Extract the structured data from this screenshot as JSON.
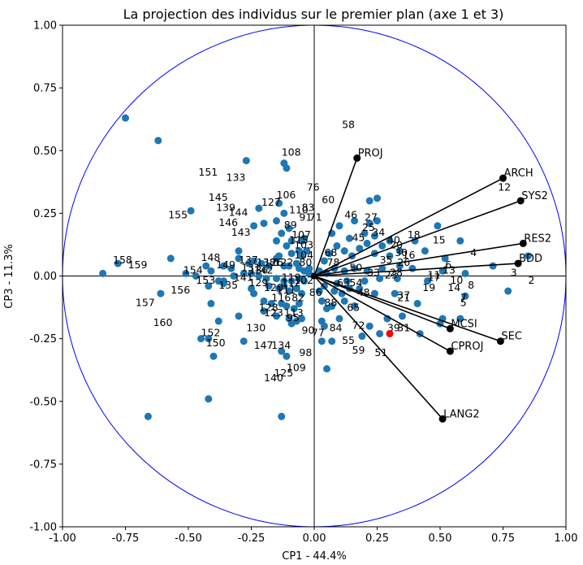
{
  "chart_data": {
    "type": "scatter",
    "title": "La projection des individus sur le premier plan (axe 1 et 3)",
    "xlabel": "CP1 - 44.4%",
    "ylabel": "CP3 - 11.3%",
    "xlim": [
      -1.0,
      1.0
    ],
    "ylim": [
      -1.0,
      1.0
    ],
    "xticks": [
      "-1.00",
      "-0.75",
      "-0.50",
      "-0.25",
      "0.00",
      "0.25",
      "0.50",
      "0.75",
      "1.00"
    ],
    "yticks": [
      "-1.00",
      "-0.75",
      "-0.50",
      "-0.25",
      "0.00",
      "0.25",
      "0.50",
      "0.75",
      "1.00"
    ],
    "grid": false,
    "unit_circle": {
      "radius": 1.0,
      "color": "#0000ff"
    },
    "point_color": "#1f77b4",
    "variable_color": "#000000",
    "highlight_color": "#ff0000",
    "highlight_point": {
      "x": 0.3,
      "y": -0.23
    },
    "variables": [
      {
        "name": "PROJ",
        "x": 0.17,
        "y": 0.47
      },
      {
        "name": "ARCH",
        "x": 0.75,
        "y": 0.39
      },
      {
        "name": "SYS2",
        "x": 0.82,
        "y": 0.3
      },
      {
        "name": "RES2",
        "x": 0.83,
        "y": 0.13
      },
      {
        "name": "BDD",
        "x": 0.81,
        "y": 0.05
      },
      {
        "name": "MCSI",
        "x": 0.54,
        "y": -0.21
      },
      {
        "name": "SEC",
        "x": 0.74,
        "y": -0.26
      },
      {
        "name": "CPROJ",
        "x": 0.54,
        "y": -0.3
      },
      {
        "name": "LANG2",
        "x": 0.51,
        "y": -0.57
      }
    ],
    "points": [
      {
        "x": -0.75,
        "y": 0.63
      },
      {
        "x": -0.62,
        "y": 0.54
      },
      {
        "x": -0.27,
        "y": 0.46
      },
      {
        "x": -0.12,
        "y": 0.45
      },
      {
        "x": -0.11,
        "y": 0.43
      },
      {
        "x": -0.49,
        "y": 0.26
      },
      {
        "x": -0.22,
        "y": 0.27
      },
      {
        "x": -0.14,
        "y": 0.29
      },
      {
        "x": -0.12,
        "y": 0.25
      },
      {
        "x": -0.2,
        "y": 0.21
      },
      {
        "x": -0.24,
        "y": 0.2
      },
      {
        "x": -0.15,
        "y": 0.22
      },
      {
        "x": -0.1,
        "y": 0.19
      },
      {
        "x": -0.13,
        "y": 0.17
      },
      {
        "x": -0.15,
        "y": 0.14
      },
      {
        "x": -0.11,
        "y": 0.12
      },
      {
        "x": -0.09,
        "y": 0.14
      },
      {
        "x": -0.05,
        "y": 0.14
      },
      {
        "x": -0.04,
        "y": 0.15
      },
      {
        "x": -0.06,
        "y": 0.1
      },
      {
        "x": -0.09,
        "y": 0.09
      },
      {
        "x": -0.14,
        "y": 0.08
      },
      {
        "x": -0.05,
        "y": 0.08
      },
      {
        "x": -0.03,
        "y": 0.1
      },
      {
        "x": -0.57,
        "y": 0.07
      },
      {
        "x": -0.43,
        "y": 0.04
      },
      {
        "x": -0.41,
        "y": 0.02
      },
      {
        "x": -0.36,
        "y": 0.04
      },
      {
        "x": -0.33,
        "y": 0.03
      },
      {
        "x": -0.3,
        "y": 0.07
      },
      {
        "x": -0.3,
        "y": 0.1
      },
      {
        "x": -0.26,
        "y": 0.05
      },
      {
        "x": -0.24,
        "y": 0.06
      },
      {
        "x": -0.21,
        "y": 0.05
      },
      {
        "x": -0.18,
        "y": 0.04
      },
      {
        "x": -0.15,
        "y": 0.07
      },
      {
        "x": -0.12,
        "y": 0.04
      },
      {
        "x": -0.1,
        "y": 0.04
      },
      {
        "x": -0.07,
        "y": 0.05
      },
      {
        "x": -0.06,
        "y": 0.03
      },
      {
        "x": -0.04,
        "y": 0.02
      },
      {
        "x": -0.02,
        "y": 0.03
      },
      {
        "x": -0.02,
        "y": 0.01
      },
      {
        "x": -0.78,
        "y": 0.05
      },
      {
        "x": -0.84,
        "y": 0.01
      },
      {
        "x": -0.51,
        "y": 0.01
      },
      {
        "x": -0.47,
        "y": 0.0
      },
      {
        "x": -0.38,
        "y": -0.02
      },
      {
        "x": -0.36,
        "y": -0.02
      },
      {
        "x": -0.32,
        "y": 0.0
      },
      {
        "x": -0.28,
        "y": 0.01
      },
      {
        "x": -0.25,
        "y": 0.01
      },
      {
        "x": -0.22,
        "y": 0.0
      },
      {
        "x": -0.19,
        "y": -0.01
      },
      {
        "x": -0.15,
        "y": -0.01
      },
      {
        "x": -0.12,
        "y": -0.02
      },
      {
        "x": -0.09,
        "y": -0.02
      },
      {
        "x": -0.06,
        "y": -0.01
      },
      {
        "x": -0.04,
        "y": -0.02
      },
      {
        "x": -0.61,
        "y": -0.07
      },
      {
        "x": -0.42,
        "y": -0.04
      },
      {
        "x": -0.36,
        "y": -0.03
      },
      {
        "x": -0.25,
        "y": -0.05
      },
      {
        "x": -0.24,
        "y": -0.07
      },
      {
        "x": -0.18,
        "y": -0.04
      },
      {
        "x": -0.14,
        "y": -0.05
      },
      {
        "x": -0.12,
        "y": -0.04
      },
      {
        "x": -0.1,
        "y": -0.06
      },
      {
        "x": -0.07,
        "y": -0.05
      },
      {
        "x": -0.05,
        "y": -0.07
      },
      {
        "x": -0.41,
        "y": -0.11
      },
      {
        "x": -0.2,
        "y": -0.1
      },
      {
        "x": -0.17,
        "y": -0.11
      },
      {
        "x": -0.13,
        "y": -0.11
      },
      {
        "x": -0.11,
        "y": -0.12
      },
      {
        "x": -0.08,
        "y": -0.13
      },
      {
        "x": -0.06,
        "y": -0.11
      },
      {
        "x": -0.38,
        "y": -0.18
      },
      {
        "x": -0.3,
        "y": -0.16
      },
      {
        "x": -0.2,
        "y": -0.14
      },
      {
        "x": -0.15,
        "y": -0.16
      },
      {
        "x": -0.1,
        "y": -0.17
      },
      {
        "x": -0.07,
        "y": -0.18
      },
      {
        "x": -0.05,
        "y": -0.17
      },
      {
        "x": -0.09,
        "y": -0.19
      },
      {
        "x": -0.45,
        "y": -0.25
      },
      {
        "x": -0.42,
        "y": -0.25
      },
      {
        "x": -0.4,
        "y": -0.32
      },
      {
        "x": -0.28,
        "y": -0.26
      },
      {
        "x": -0.13,
        "y": -0.3
      },
      {
        "x": -0.11,
        "y": -0.32
      },
      {
        "x": -0.42,
        "y": -0.49
      },
      {
        "x": -0.66,
        "y": -0.56
      },
      {
        "x": -0.13,
        "y": -0.56
      },
      {
        "x": 0.05,
        "y": -0.37
      },
      {
        "x": 0.03,
        "y": -0.26
      },
      {
        "x": 0.07,
        "y": -0.26
      },
      {
        "x": 0.1,
        "y": -0.17
      },
      {
        "x": 0.04,
        "y": -0.2
      },
      {
        "x": 0.03,
        "y": -0.18
      },
      {
        "x": 0.19,
        "y": -0.24
      },
      {
        "x": 0.22,
        "y": -0.2
      },
      {
        "x": 0.26,
        "y": -0.23
      },
      {
        "x": 0.29,
        "y": -0.17
      },
      {
        "x": 0.35,
        "y": -0.16
      },
      {
        "x": 0.42,
        "y": -0.23
      },
      {
        "x": 0.5,
        "y": -0.19
      },
      {
        "x": 0.51,
        "y": -0.17
      },
      {
        "x": 0.58,
        "y": -0.17
      },
      {
        "x": 0.16,
        "y": -0.12
      },
      {
        "x": 0.12,
        "y": -0.1
      },
      {
        "x": 0.07,
        "y": -0.12
      },
      {
        "x": 0.05,
        "y": -0.13
      },
      {
        "x": 0.03,
        "y": -0.1
      },
      {
        "x": 0.08,
        "y": -0.06
      },
      {
        "x": 0.11,
        "y": -0.07
      },
      {
        "x": 0.14,
        "y": -0.05
      },
      {
        "x": 0.18,
        "y": -0.05
      },
      {
        "x": 0.24,
        "y": -0.07
      },
      {
        "x": 0.32,
        "y": -0.07
      },
      {
        "x": 0.41,
        "y": -0.11
      },
      {
        "x": 0.6,
        "y": -0.08
      },
      {
        "x": 0.77,
        "y": -0.06
      },
      {
        "x": 0.04,
        "y": -0.04
      },
      {
        "x": 0.02,
        "y": -0.06
      },
      {
        "x": 0.09,
        "y": -0.03
      },
      {
        "x": 0.13,
        "y": -0.02
      },
      {
        "x": 0.2,
        "y": -0.02
      },
      {
        "x": 0.26,
        "y": -0.01
      },
      {
        "x": 0.33,
        "y": -0.01
      },
      {
        "x": 0.45,
        "y": -0.02
      },
      {
        "x": 0.02,
        "y": 0.02
      },
      {
        "x": 0.05,
        "y": 0.01
      },
      {
        "x": 0.08,
        "y": 0.03
      },
      {
        "x": 0.12,
        "y": 0.02
      },
      {
        "x": 0.16,
        "y": 0.03
      },
      {
        "x": 0.21,
        "y": 0.02
      },
      {
        "x": 0.27,
        "y": 0.03
      },
      {
        "x": 0.34,
        "y": 0.04
      },
      {
        "x": 0.39,
        "y": 0.03
      },
      {
        "x": 0.51,
        "y": 0.02
      },
      {
        "x": 0.52,
        "y": 0.07
      },
      {
        "x": 0.6,
        "y": 0.01
      },
      {
        "x": 0.71,
        "y": 0.04
      },
      {
        "x": 0.85,
        "y": 0.08
      },
      {
        "x": 0.04,
        "y": 0.06
      },
      {
        "x": 0.06,
        "y": 0.09
      },
      {
        "x": 0.09,
        "y": 0.12
      },
      {
        "x": 0.12,
        "y": 0.1
      },
      {
        "x": 0.15,
        "y": 0.08
      },
      {
        "x": 0.18,
        "y": 0.11
      },
      {
        "x": 0.21,
        "y": 0.13
      },
      {
        "x": 0.24,
        "y": 0.09
      },
      {
        "x": 0.27,
        "y": 0.12
      },
      {
        "x": 0.3,
        "y": 0.08
      },
      {
        "x": 0.34,
        "y": 0.1
      },
      {
        "x": 0.44,
        "y": 0.1
      },
      {
        "x": 0.07,
        "y": 0.17
      },
      {
        "x": 0.1,
        "y": 0.2
      },
      {
        "x": 0.14,
        "y": 0.15
      },
      {
        "x": 0.16,
        "y": 0.22
      },
      {
        "x": 0.2,
        "y": 0.17
      },
      {
        "x": 0.22,
        "y": 0.21
      },
      {
        "x": 0.24,
        "y": 0.16
      },
      {
        "x": 0.25,
        "y": 0.22
      },
      {
        "x": 0.3,
        "y": 0.14
      },
      {
        "x": 0.4,
        "y": 0.14
      },
      {
        "x": 0.49,
        "y": 0.2
      },
      {
        "x": 0.58,
        "y": 0.14
      },
      {
        "x": 0.22,
        "y": 0.3
      },
      {
        "x": 0.25,
        "y": 0.31
      }
    ],
    "point_labels": [
      {
        "text": "58",
        "x": 0.11,
        "y": 0.59
      },
      {
        "text": "108",
        "x": -0.13,
        "y": 0.48
      },
      {
        "text": "151",
        "x": -0.46,
        "y": 0.4
      },
      {
        "text": "133",
        "x": -0.35,
        "y": 0.38
      },
      {
        "text": "76",
        "x": -0.03,
        "y": 0.34
      },
      {
        "text": "145",
        "x": -0.42,
        "y": 0.3
      },
      {
        "text": "106",
        "x": -0.15,
        "y": 0.31
      },
      {
        "text": "60",
        "x": 0.03,
        "y": 0.29
      },
      {
        "text": "127",
        "x": -0.21,
        "y": 0.28
      },
      {
        "text": "139",
        "x": -0.39,
        "y": 0.26
      },
      {
        "text": "110",
        "x": -0.1,
        "y": 0.25
      },
      {
        "text": "83",
        "x": -0.05,
        "y": 0.26
      },
      {
        "text": "155",
        "x": -0.58,
        "y": 0.23
      },
      {
        "text": "144",
        "x": -0.34,
        "y": 0.24
      },
      {
        "text": "91",
        "x": -0.06,
        "y": 0.22
      },
      {
        "text": "71",
        "x": -0.02,
        "y": 0.22
      },
      {
        "text": "46",
        "x": 0.12,
        "y": 0.23
      },
      {
        "text": "27",
        "x": 0.2,
        "y": 0.22
      },
      {
        "text": "146",
        "x": -0.38,
        "y": 0.2
      },
      {
        "text": "89",
        "x": -0.12,
        "y": 0.19
      },
      {
        "text": "143",
        "x": -0.33,
        "y": 0.16
      },
      {
        "text": "107",
        "x": -0.09,
        "y": 0.15
      },
      {
        "text": "115",
        "x": -0.1,
        "y": 0.13
      },
      {
        "text": "103",
        "x": -0.08,
        "y": 0.11
      },
      {
        "text": "18",
        "x": 0.37,
        "y": 0.15
      },
      {
        "text": "15",
        "x": 0.47,
        "y": 0.13
      },
      {
        "text": "4",
        "x": 0.62,
        "y": 0.08
      },
      {
        "text": "12",
        "x": 0.73,
        "y": 0.34
      },
      {
        "text": "158",
        "x": -0.8,
        "y": 0.05
      },
      {
        "text": "159",
        "x": -0.74,
        "y": 0.03
      },
      {
        "text": "148",
        "x": -0.45,
        "y": 0.06
      },
      {
        "text": "137",
        "x": -0.3,
        "y": 0.05
      },
      {
        "text": "122",
        "x": -0.16,
        "y": 0.04
      },
      {
        "text": "104",
        "x": -0.08,
        "y": 0.07
      },
      {
        "text": "154",
        "x": -0.52,
        "y": 0.01
      },
      {
        "text": "149",
        "x": -0.39,
        "y": 0.03
      },
      {
        "text": "153",
        "x": -0.47,
        "y": -0.03
      },
      {
        "text": "141",
        "x": -0.32,
        "y": -0.02
      },
      {
        "text": "135",
        "x": -0.38,
        "y": -0.05
      },
      {
        "text": "129",
        "x": -0.26,
        "y": -0.04
      },
      {
        "text": "120",
        "x": -0.2,
        "y": -0.06
      },
      {
        "text": "156",
        "x": -0.57,
        "y": -0.07
      },
      {
        "text": "157",
        "x": -0.71,
        "y": -0.12
      },
      {
        "text": "116",
        "x": -0.17,
        "y": -0.1
      },
      {
        "text": "128",
        "x": -0.22,
        "y": -0.14
      },
      {
        "text": "123",
        "x": -0.2,
        "y": -0.16
      },
      {
        "text": "113",
        "x": -0.12,
        "y": -0.16
      },
      {
        "text": "160",
        "x": -0.64,
        "y": -0.2
      },
      {
        "text": "130",
        "x": -0.27,
        "y": -0.22
      },
      {
        "text": "152",
        "x": -0.45,
        "y": -0.24
      },
      {
        "text": "150",
        "x": -0.43,
        "y": -0.28
      },
      {
        "text": "147",
        "x": -0.24,
        "y": -0.29
      },
      {
        "text": "134",
        "x": -0.17,
        "y": -0.29
      },
      {
        "text": "98",
        "x": -0.06,
        "y": -0.32
      },
      {
        "text": "109",
        "x": -0.11,
        "y": -0.38
      },
      {
        "text": "125",
        "x": -0.16,
        "y": -0.4
      },
      {
        "text": "140",
        "x": -0.2,
        "y": -0.42
      },
      {
        "text": "90",
        "x": -0.05,
        "y": -0.23
      },
      {
        "text": "77",
        "x": -0.01,
        "y": -0.24
      },
      {
        "text": "84",
        "x": 0.06,
        "y": -0.22
      },
      {
        "text": "55",
        "x": 0.11,
        "y": -0.27
      },
      {
        "text": "59",
        "x": 0.15,
        "y": -0.31
      },
      {
        "text": "51",
        "x": 0.24,
        "y": -0.32
      },
      {
        "text": "72",
        "x": 0.15,
        "y": -0.21
      },
      {
        "text": "39",
        "x": 0.29,
        "y": -0.22
      },
      {
        "text": "31",
        "x": 0.33,
        "y": -0.22
      },
      {
        "text": "65",
        "x": 0.13,
        "y": -0.14
      },
      {
        "text": "37",
        "x": 0.33,
        "y": -0.09
      },
      {
        "text": "21",
        "x": 0.33,
        "y": -0.1
      },
      {
        "text": "19",
        "x": 0.43,
        "y": -0.06
      },
      {
        "text": "14",
        "x": 0.53,
        "y": -0.06
      },
      {
        "text": "7",
        "x": 0.58,
        "y": -0.1
      },
      {
        "text": "5",
        "x": 0.58,
        "y": -0.12
      },
      {
        "text": "8",
        "x": 0.61,
        "y": -0.05
      },
      {
        "text": "10",
        "x": 0.54,
        "y": -0.03
      },
      {
        "text": "17",
        "x": 0.45,
        "y": -0.02
      },
      {
        "text": "11",
        "x": 0.45,
        "y": -0.01
      },
      {
        "text": "6",
        "x": 0.52,
        "y": 0.03
      },
      {
        "text": "13",
        "x": 0.51,
        "y": 0.01
      },
      {
        "text": "3",
        "x": 0.78,
        "y": 0.0
      },
      {
        "text": "2",
        "x": 0.85,
        "y": -0.03
      },
      {
        "text": "16",
        "x": 0.35,
        "y": 0.07
      },
      {
        "text": "20",
        "x": 0.3,
        "y": 0.11
      },
      {
        "text": "25",
        "x": 0.19,
        "y": 0.18
      },
      {
        "text": "34",
        "x": 0.23,
        "y": 0.16
      },
      {
        "text": "45",
        "x": 0.15,
        "y": 0.14
      },
      {
        "text": "50",
        "x": 0.14,
        "y": 0.02
      },
      {
        "text": "48",
        "x": 0.17,
        "y": -0.08
      },
      {
        "text": "54",
        "x": 0.14,
        "y": -0.04
      },
      {
        "text": "63",
        "x": 0.09,
        "y": -0.04
      },
      {
        "text": "68",
        "x": 0.04,
        "y": 0.08
      },
      {
        "text": "78",
        "x": 0.05,
        "y": 0.04
      },
      {
        "text": "80",
        "x": -0.06,
        "y": 0.04
      },
      {
        "text": "82",
        "x": -0.09,
        "y": -0.1
      },
      {
        "text": "86",
        "x": -0.02,
        "y": -0.08
      },
      {
        "text": "88",
        "x": 0.04,
        "y": -0.12
      },
      {
        "text": "95",
        "x": -0.11,
        "y": -0.18
      },
      {
        "text": "102",
        "x": -0.08,
        "y": -0.03
      },
      {
        "text": "111",
        "x": -0.15,
        "y": -0.07
      },
      {
        "text": "112",
        "x": -0.13,
        "y": -0.04
      },
      {
        "text": "119",
        "x": -0.13,
        "y": -0.02
      },
      {
        "text": "126",
        "x": -0.2,
        "y": 0.04
      },
      {
        "text": "131",
        "x": -0.29,
        "y": 0.02
      },
      {
        "text": "136",
        "x": -0.26,
        "y": 0.01
      },
      {
        "text": "138",
        "x": -0.23,
        "y": 0.04
      },
      {
        "text": "142",
        "x": -0.24,
        "y": 0.01
      },
      {
        "text": "40",
        "x": 0.29,
        "y": 0.13
      },
      {
        "text": "35",
        "x": 0.26,
        "y": 0.05
      },
      {
        "text": "30",
        "x": 0.32,
        "y": 0.08
      },
      {
        "text": "26",
        "x": 0.33,
        "y": 0.04
      },
      {
        "text": "23",
        "x": 0.28,
        "y": -0.01
      },
      {
        "text": "28",
        "x": 0.3,
        "y": 0.0
      },
      {
        "text": "33",
        "x": 0.21,
        "y": 0.0
      }
    ]
  }
}
